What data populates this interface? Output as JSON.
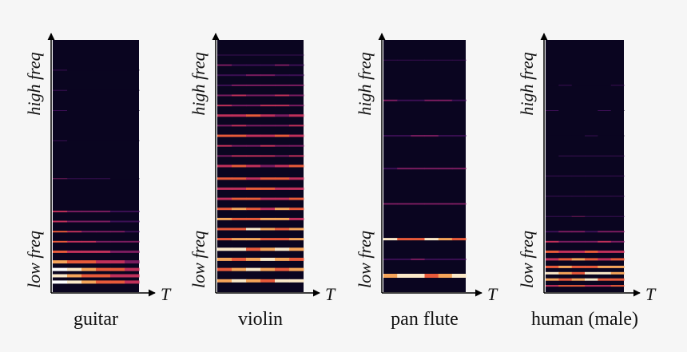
{
  "panels": [
    {
      "id": "guitar",
      "caption": "guitar",
      "high_label": "high freq",
      "low_label": "low freq",
      "time_label": "T"
    },
    {
      "id": "violin",
      "caption": "violin",
      "high_label": "high freq",
      "low_label": "low freq",
      "time_label": "T"
    },
    {
      "id": "panflute",
      "caption": "pan flute",
      "high_label": "high freq",
      "low_label": "low freq",
      "time_label": "T"
    },
    {
      "id": "human",
      "caption": "human (male)",
      "high_label": "high freq",
      "low_label": "low freq",
      "time_label": "T"
    }
  ],
  "colors": {
    "background": "#f6f6f6",
    "spectrogram_bg": "#0a0520",
    "axis": "#000000",
    "colormap": [
      "#0a0520",
      "#3b0f53",
      "#7a1c5f",
      "#c0305a",
      "#e85a3a",
      "#f6a55a",
      "#fbe9c8",
      "#ffffff"
    ]
  }
}
